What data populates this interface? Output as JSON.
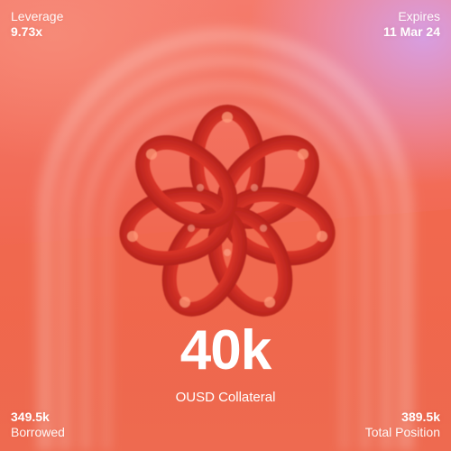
{
  "leverage": {
    "label": "Leverage",
    "value": "9.73x"
  },
  "expires": {
    "label": "Expires",
    "value": "11 Mar 24"
  },
  "collateral": {
    "value": "40k",
    "label": "OUSD Collateral"
  },
  "borrowed": {
    "value": "349.5k",
    "label": "Borrowed"
  },
  "total_position": {
    "value": "389.5k",
    "label": "Total Position"
  },
  "artwork": {
    "icon": "mobius-knot-icon"
  },
  "colors": {
    "background_top": "#f57b6c",
    "background_bottom": "#ee6a4f",
    "corner_glow": "#d6a0e8",
    "knot": "#e0372a",
    "text": "#ffffff"
  }
}
